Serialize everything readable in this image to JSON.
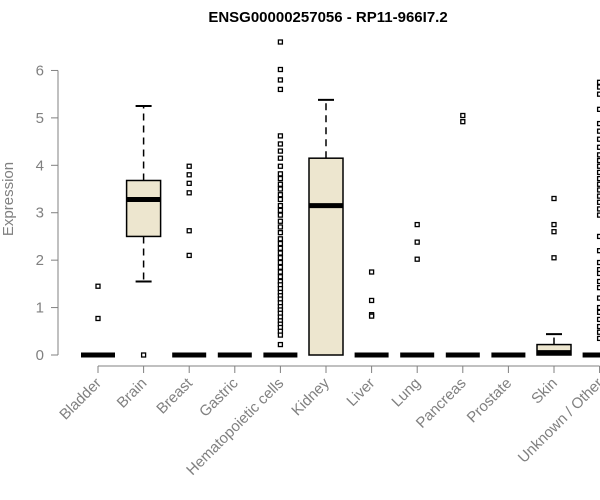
{
  "chart_data": {
    "type": "boxplot",
    "title": "ENSG00000257056 - RP11-966I7.2",
    "xlabel": "",
    "ylabel": "Expression",
    "ylim": [
      0,
      6.6
    ],
    "yticks": [
      0,
      1,
      2,
      3,
      4,
      5,
      6
    ],
    "box_fill": "#ede6cf",
    "categories": [
      "Bladder",
      "Brain",
      "Breast",
      "Gastric",
      "Hematopoietic cells",
      "Kidney",
      "Liver",
      "Lung",
      "Pancreas",
      "Prostate",
      "Skin",
      "Unknown / Other"
    ],
    "boxes": [
      {
        "name": "Bladder",
        "q1": 0,
        "median": 0,
        "q3": 0,
        "whisker_low": 0,
        "whisker_high": 0,
        "outliers": [
          1.45,
          0.77
        ]
      },
      {
        "name": "Brain",
        "q1": 2.5,
        "median": 3.28,
        "q3": 3.68,
        "whisker_low": 1.55,
        "whisker_high": 5.25,
        "outliers": [
          0
        ]
      },
      {
        "name": "Breast",
        "q1": 0,
        "median": 0,
        "q3": 0,
        "whisker_low": 0,
        "whisker_high": 0,
        "outliers": [
          3.98,
          3.8,
          3.62,
          3.42,
          2.62,
          2.1
        ]
      },
      {
        "name": "Gastric",
        "q1": 0,
        "median": 0,
        "q3": 0,
        "whisker_low": 0,
        "whisker_high": 0,
        "outliers": []
      },
      {
        "name": "Hematopoietic cells",
        "q1": 0,
        "median": 0,
        "q3": 0,
        "whisker_low": 0,
        "whisker_high": 0,
        "outliers": [
          6.6,
          6.02,
          5.8,
          5.6,
          4.62,
          4.45,
          4.3,
          4.15,
          3.98,
          3.82,
          3.72,
          3.6,
          3.5,
          3.38,
          3.28,
          3.15,
          3.05,
          2.95,
          2.82,
          2.7,
          2.58,
          2.45,
          2.35,
          2.25,
          2.15,
          2.05,
          1.95,
          1.85,
          1.75,
          1.65,
          1.55,
          1.48,
          1.4,
          1.32,
          1.25,
          1.18,
          1.1,
          1.02,
          0.95,
          0.88,
          0.8,
          0.72,
          0.65,
          0.58,
          0.5,
          0.42,
          0.22
        ]
      },
      {
        "name": "Kidney",
        "q1": 0,
        "median": 3.15,
        "q3": 4.15,
        "whisker_low": 0,
        "whisker_high": 5.38,
        "outliers": []
      },
      {
        "name": "Liver",
        "q1": 0,
        "median": 0,
        "q3": 0,
        "whisker_low": 0,
        "whisker_high": 0,
        "outliers": [
          1.75,
          1.15,
          0.85,
          0.82
        ]
      },
      {
        "name": "Lung",
        "q1": 0,
        "median": 0,
        "q3": 0,
        "whisker_low": 0,
        "whisker_high": 0,
        "outliers": [
          2.75,
          2.38,
          2.02
        ]
      },
      {
        "name": "Pancreas",
        "q1": 0,
        "median": 0,
        "q3": 0,
        "whisker_low": 0,
        "whisker_high": 0,
        "outliers": [
          5.05,
          4.92
        ]
      },
      {
        "name": "Prostate",
        "q1": 0,
        "median": 0,
        "q3": 0,
        "whisker_low": 0,
        "whisker_high": 0,
        "outliers": []
      },
      {
        "name": "Skin",
        "q1": 0,
        "median": 0.05,
        "q3": 0.22,
        "whisker_low": 0,
        "whisker_high": 0.44,
        "outliers": [
          3.3,
          2.75,
          2.6,
          2.05
        ]
      },
      {
        "name": "Unknown / Other",
        "q1": 0,
        "median": 0,
        "q3": 0,
        "whisker_low": 0,
        "whisker_high": 0,
        "outliers": [
          5.75,
          5.65,
          5.5,
          5.18,
          4.88,
          4.72,
          4.55,
          4.38,
          4.22,
          4.1,
          3.98,
          3.85,
          3.72,
          3.6,
          3.48,
          3.35,
          3.22,
          3.08,
          2.95,
          2.5,
          2.2,
          1.95,
          1.8,
          1.72,
          1.55,
          1.42,
          1.2,
          1.0,
          0.9,
          0.75,
          0.6,
          0.48,
          0.35
        ]
      }
    ]
  }
}
